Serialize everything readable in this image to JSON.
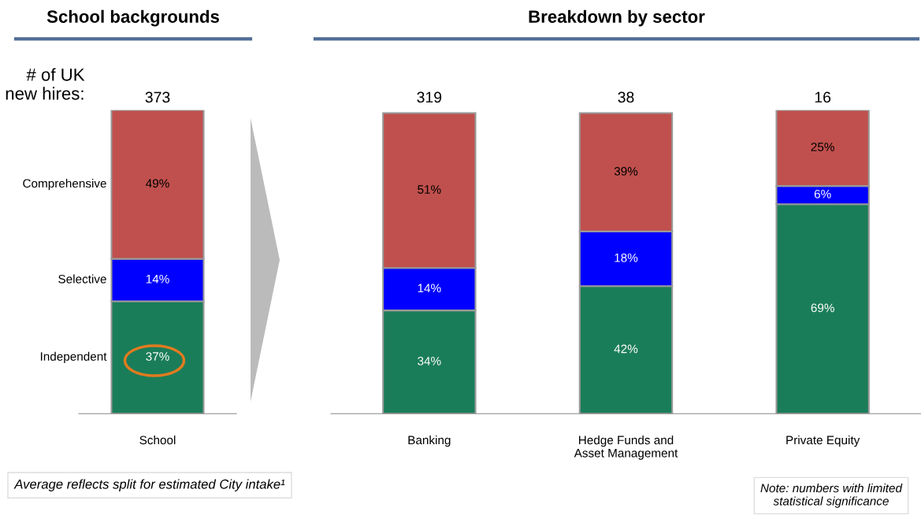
{
  "chart_data": [
    {
      "type": "bar",
      "title": "School backgrounds",
      "stacked": true,
      "categories": [
        "School"
      ],
      "ylim": [
        0,
        100
      ],
      "tick_labels": "x",
      "legend": false,
      "annotations": [
        "# of UK\nnew hires:",
        "Average reflects split for estimated City intake¹",
        {
          "text": "373",
          "x": "School",
          "y": 100
        }
      ],
      "series": [
        {
          "name": "Independent",
          "color": "#1a7d59",
          "values": [
            37
          ],
          "value_labels": [
            "37%"
          ]
        },
        {
          "name": "Selective",
          "color": "#0000ff",
          "values": [
            14
          ],
          "value_labels": [
            "14%"
          ]
        },
        {
          "name": "Comprehensive",
          "color": "#c0504d",
          "values": [
            49
          ],
          "value_labels": [
            "49%"
          ]
        }
      ]
    },
    {
      "type": "bar",
      "title": "Breakdown by sector",
      "stacked": true,
      "categories": [
        "Banking",
        "Hedge Funds and\nAsset Management",
        "Private Equity"
      ],
      "ylim": [
        0,
        100
      ],
      "tick_labels": "x",
      "legend": false,
      "annotations": [
        "Note: numbers with limited statistical significance",
        {
          "text": "319",
          "x": "Banking",
          "y": 100
        },
        {
          "text": "38",
          "x": "Hedge Funds and\nAsset Management",
          "y": 100
        },
        {
          "text": "16",
          "x": "Private Equity",
          "y": 100
        }
      ],
      "series": [
        {
          "color": "#1a7d59",
          "values": [
            34,
            42,
            69
          ],
          "value_labels": [
            "34%",
            "42%",
            "69%"
          ]
        },
        {
          "color": "#0000ff",
          "values": [
            14,
            18,
            6
          ],
          "value_labels": [
            "14%",
            "18%",
            "6%"
          ]
        },
        {
          "color": "#c0504d",
          "values": [
            51,
            39,
            25
          ],
          "value_labels": [
            "51%",
            "39%",
            "25%"
          ]
        }
      ]
    }
  ]
}
